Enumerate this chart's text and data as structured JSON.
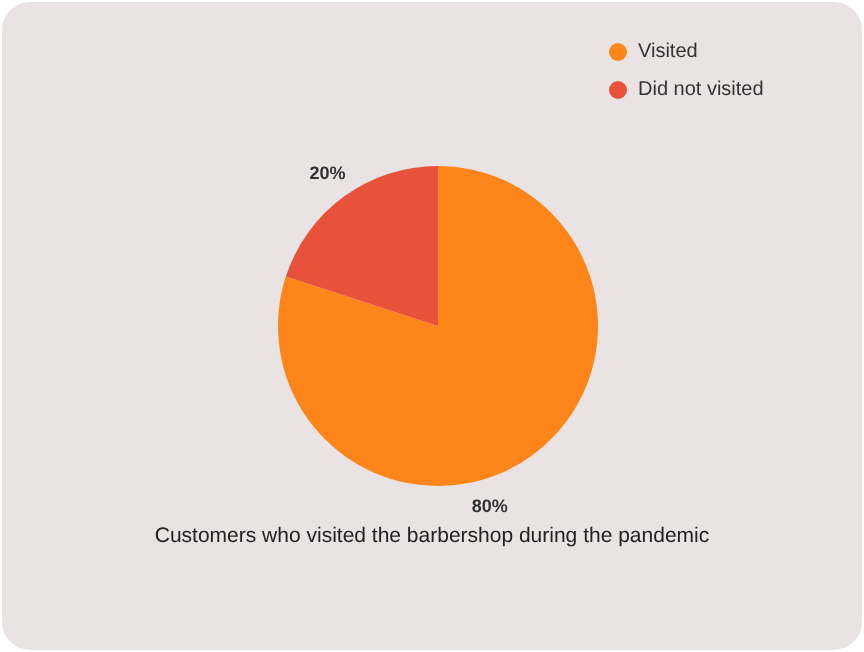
{
  "chart_data": {
    "type": "pie",
    "title": "Customers who visited the barbershop during the pandemic",
    "categories": [
      "Visited",
      "Did not visited"
    ],
    "values": [
      80,
      20
    ],
    "colors": [
      "#fd8519",
      "#e8523a"
    ],
    "value_labels": [
      "80%",
      "20%"
    ],
    "legend": "top right"
  }
}
